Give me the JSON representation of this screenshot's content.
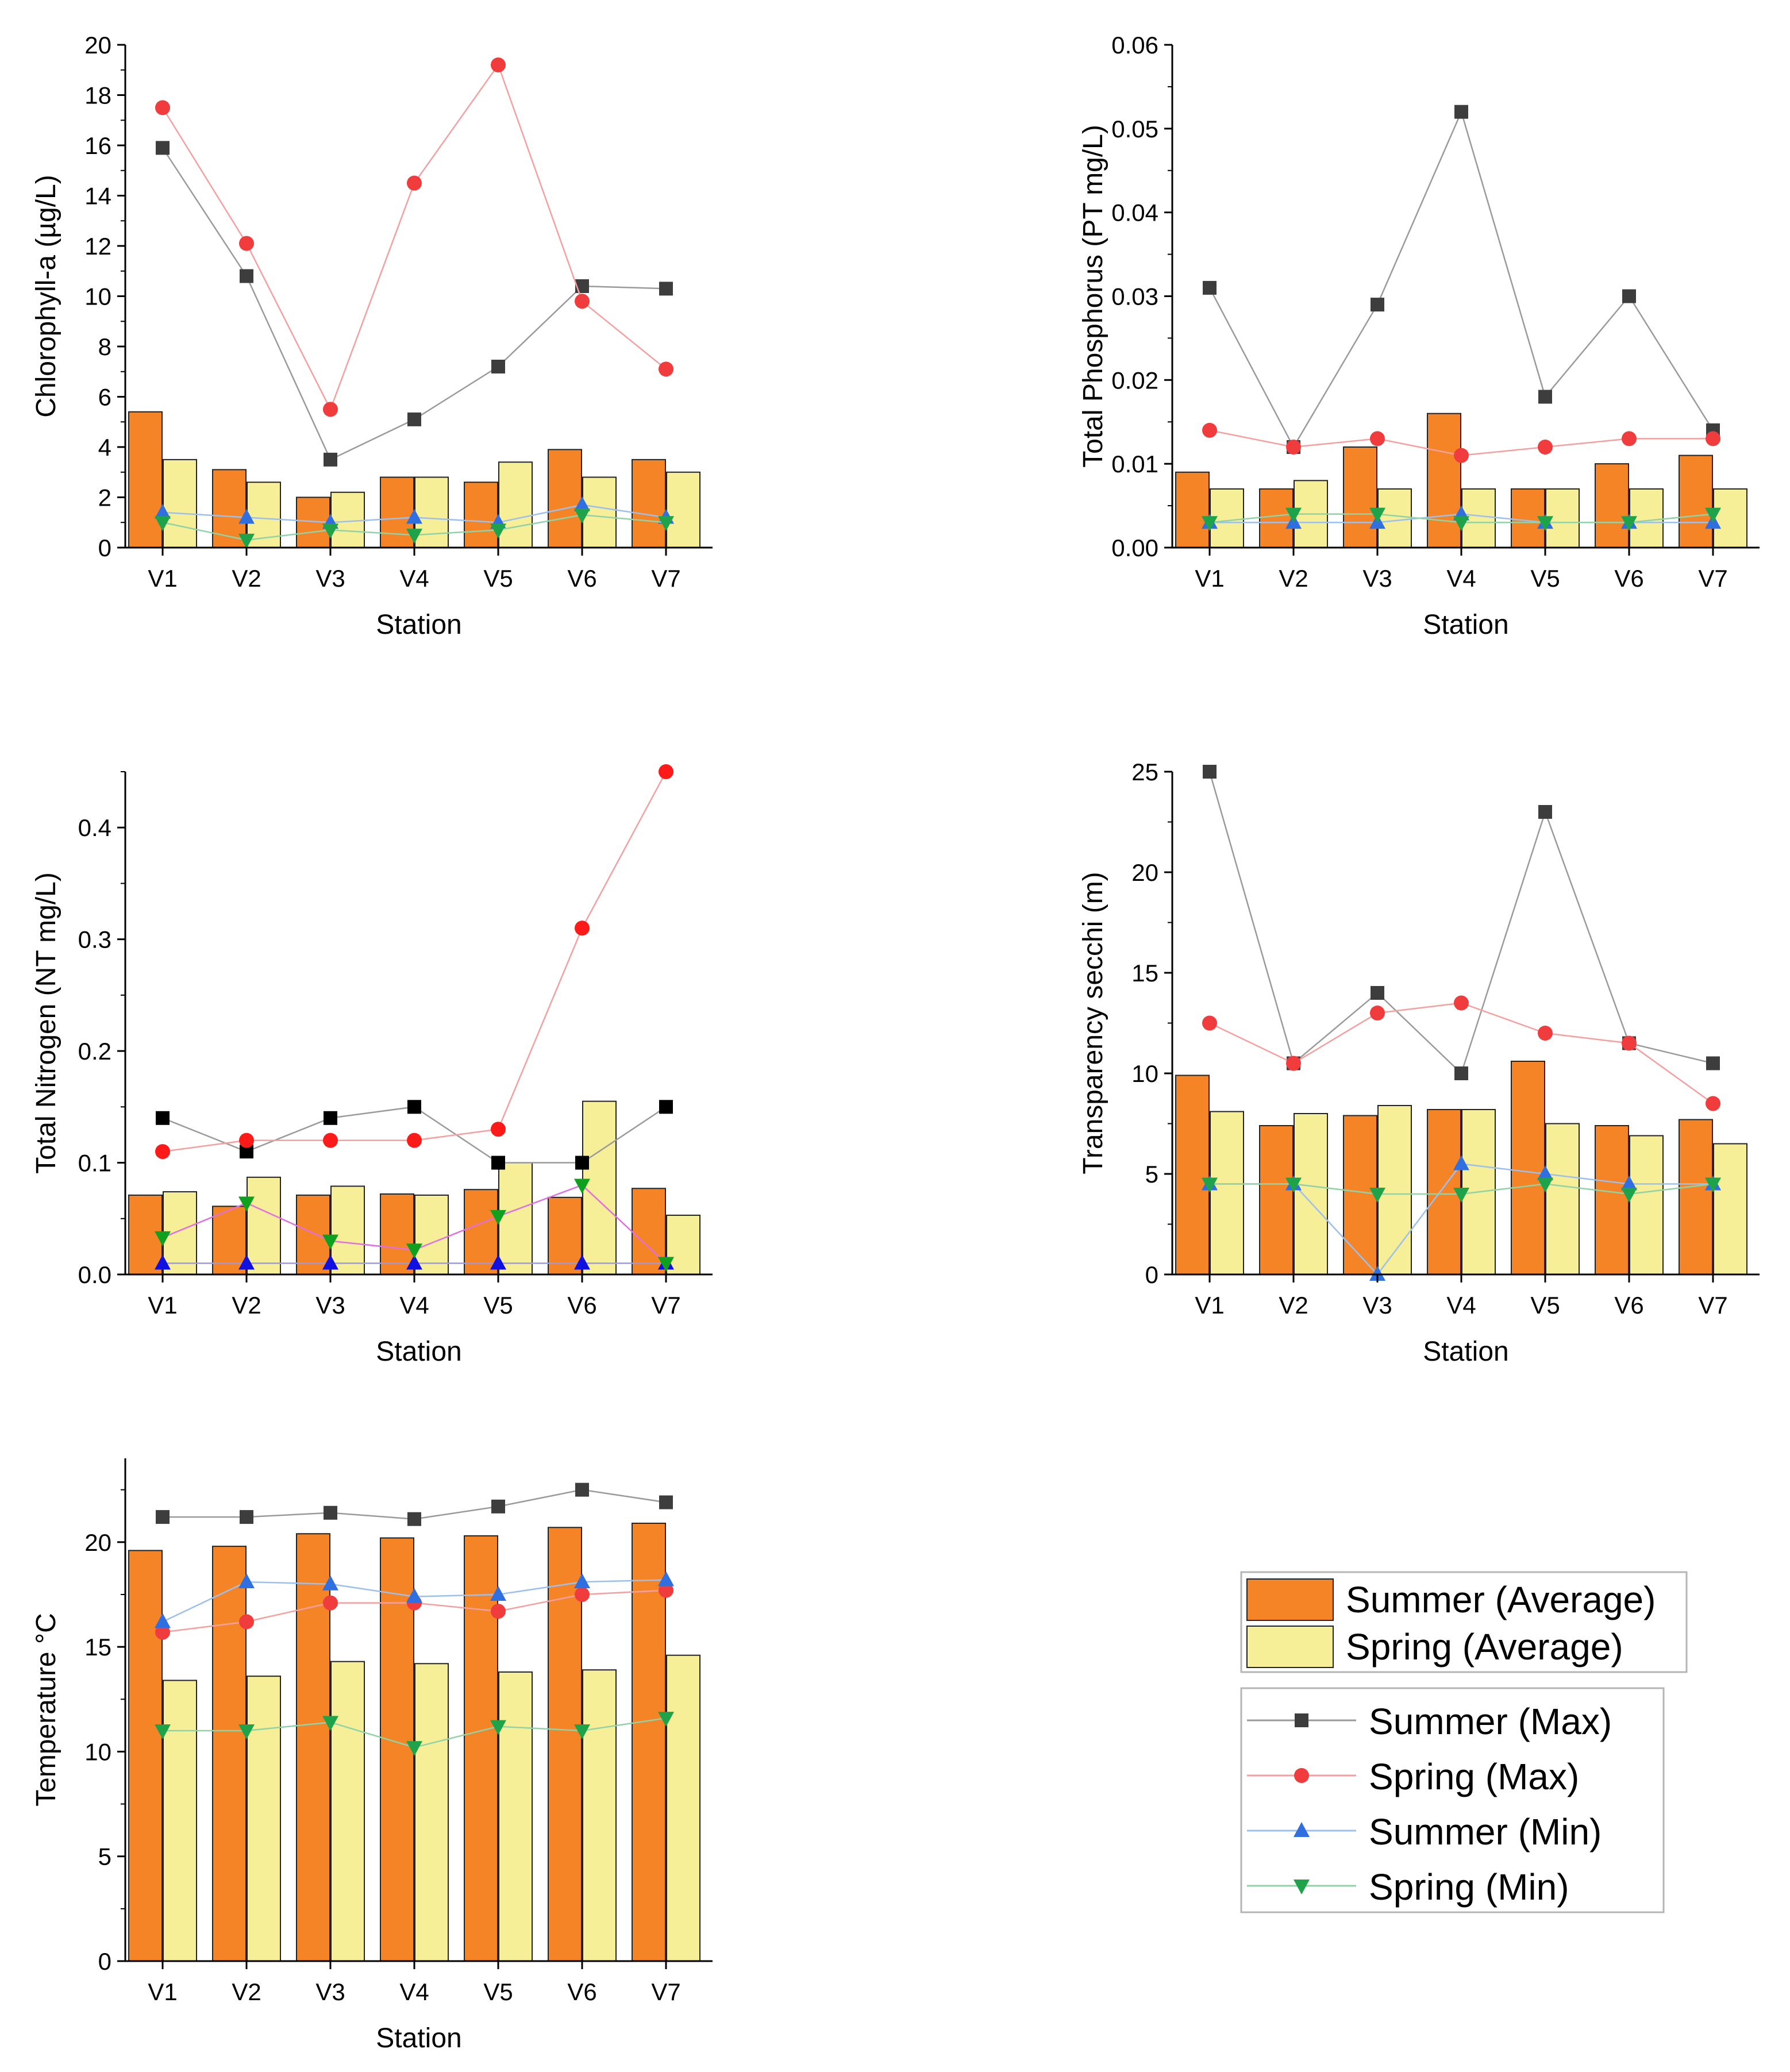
{
  "figure_title": "",
  "colors": {
    "summer_avg": "#f58426",
    "spring_avg": "#f7ee98",
    "summer_max": "#3d3d3d",
    "spring_max": "#f03c3c",
    "summer_min": "#2f6fe0",
    "spring_min": "#1fa34a",
    "summer_max_tn": "#000000",
    "spring_max_tn": "#ff1a1a",
    "summer_min_tn": "#1010e0",
    "spring_min_tn": "#10a020"
  },
  "legend": {
    "bars": [
      "Summer (Average)",
      "Spring (Average)"
    ],
    "lines": [
      "Summer (Max)",
      "Spring (Max)",
      "Summer (Min)",
      "Spring (Min)"
    ]
  },
  "chart_data": [
    {
      "type": "bar",
      "title": "",
      "xlabel": "Station",
      "ylabel": "Chlorophyll-a (µg/L)",
      "categories": [
        "V1",
        "V2",
        "V3",
        "V4",
        "V5",
        "V6",
        "V7"
      ],
      "ylim": [
        0,
        20
      ],
      "yticks": [
        "0",
        "2",
        "4",
        "6",
        "8",
        "10",
        "12",
        "14",
        "16",
        "18",
        "20"
      ],
      "series": [
        {
          "name": "Summer (Average)",
          "kind": "bar",
          "values": [
            5.4,
            3.1,
            2.0,
            2.8,
            2.6,
            3.9,
            3.5
          ]
        },
        {
          "name": "Spring (Average)",
          "kind": "bar",
          "values": [
            3.5,
            2.6,
            2.2,
            2.8,
            3.4,
            2.8,
            3.0
          ]
        },
        {
          "name": "Summer (Max)",
          "kind": "line",
          "marker": "square",
          "values": [
            15.9,
            10.8,
            3.5,
            5.1,
            7.2,
            10.4,
            10.3
          ]
        },
        {
          "name": "Spring (Max)",
          "kind": "line",
          "marker": "circle",
          "values": [
            17.5,
            12.1,
            5.5,
            14.5,
            19.2,
            9.8,
            7.1
          ]
        },
        {
          "name": "Summer (Min)",
          "kind": "line",
          "marker": "triangle-up",
          "values": [
            1.4,
            1.2,
            1.0,
            1.2,
            1.0,
            1.7,
            1.2
          ]
        },
        {
          "name": "Spring (Min)",
          "kind": "line",
          "marker": "triangle-down",
          "values": [
            1.0,
            0.3,
            0.7,
            0.5,
            0.7,
            1.3,
            1.0
          ]
        }
      ]
    },
    {
      "type": "bar",
      "title": "",
      "xlabel": "Station",
      "ylabel": "Total Phosphorus (PT mg/L)",
      "categories": [
        "V1",
        "V2",
        "V3",
        "V4",
        "V5",
        "V6",
        "V7"
      ],
      "ylim": [
        0,
        0.06
      ],
      "yticks": [
        "0.00",
        "0.01",
        "0.02",
        "0.03",
        "0.04",
        "0.05",
        "0.06"
      ],
      "series": [
        {
          "name": "Summer (Average)",
          "kind": "bar",
          "values": [
            0.009,
            0.007,
            0.012,
            0.016,
            0.007,
            0.01,
            0.011
          ]
        },
        {
          "name": "Spring (Average)",
          "kind": "bar",
          "values": [
            0.007,
            0.008,
            0.007,
            0.007,
            0.007,
            0.007,
            0.007
          ]
        },
        {
          "name": "Summer (Max)",
          "kind": "line",
          "marker": "square",
          "values": [
            0.031,
            0.012,
            0.029,
            0.052,
            0.018,
            0.03,
            0.014
          ]
        },
        {
          "name": "Spring (Max)",
          "kind": "line",
          "marker": "circle",
          "values": [
            0.014,
            0.012,
            0.013,
            0.011,
            0.012,
            0.013,
            0.013
          ]
        },
        {
          "name": "Summer (Min)",
          "kind": "line",
          "marker": "triangle-up",
          "values": [
            0.003,
            0.003,
            0.003,
            0.004,
            0.003,
            0.003,
            0.003
          ]
        },
        {
          "name": "Spring (Min)",
          "kind": "line",
          "marker": "triangle-down",
          "values": [
            0.003,
            0.004,
            0.004,
            0.003,
            0.003,
            0.003,
            0.004
          ]
        }
      ]
    },
    {
      "type": "bar",
      "title": "",
      "xlabel": "Station",
      "ylabel": "Total Nitrogen (NT mg/L)",
      "categories": [
        "V1",
        "V2",
        "V3",
        "V4",
        "V5",
        "V6",
        "V7"
      ],
      "ylim": [
        0,
        0.45
      ],
      "yticks": [
        "0.0",
        "0.1",
        "0.2",
        "0.3",
        "0.4"
      ],
      "series": [
        {
          "name": "Summer (Average)",
          "kind": "bar",
          "values": [
            0.071,
            0.061,
            0.071,
            0.072,
            0.076,
            0.069,
            0.077
          ]
        },
        {
          "name": "Spring (Average)",
          "kind": "bar",
          "values": [
            0.074,
            0.087,
            0.079,
            0.071,
            0.1,
            0.155,
            0.053
          ]
        },
        {
          "name": "Summer (Max)",
          "kind": "line",
          "marker": "square",
          "values": [
            0.14,
            0.11,
            0.14,
            0.15,
            0.1,
            0.1,
            0.15
          ]
        },
        {
          "name": "Spring (Max)",
          "kind": "line",
          "marker": "circle",
          "values": [
            0.11,
            0.12,
            0.12,
            0.12,
            0.13,
            0.31,
            0.45
          ]
        },
        {
          "name": "Summer (Min)",
          "kind": "line",
          "marker": "triangle-up",
          "values": [
            0.01,
            0.01,
            0.01,
            0.01,
            0.01,
            0.01,
            0.01
          ]
        },
        {
          "name": "Spring (Min)",
          "kind": "line",
          "marker": "triangle-down",
          "values": [
            0.033,
            0.064,
            0.03,
            0.022,
            0.052,
            0.08,
            0.01
          ]
        }
      ]
    },
    {
      "type": "bar",
      "title": "",
      "xlabel": "Station",
      "ylabel": "Transparency secchi (m)",
      "categories": [
        "V1",
        "V2",
        "V3",
        "V4",
        "V5",
        "V6",
        "V7"
      ],
      "ylim": [
        0,
        25
      ],
      "yticks": [
        "0",
        "5",
        "10",
        "15",
        "20",
        "25"
      ],
      "series": [
        {
          "name": "Summer (Average)",
          "kind": "bar",
          "values": [
            9.9,
            7.4,
            7.9,
            8.2,
            10.6,
            7.4,
            7.7
          ]
        },
        {
          "name": "Spring (Average)",
          "kind": "bar",
          "values": [
            8.1,
            8.0,
            8.4,
            8.2,
            7.5,
            6.9,
            6.5
          ]
        },
        {
          "name": "Summer (Max)",
          "kind": "line",
          "marker": "square",
          "values": [
            25,
            10.5,
            14,
            10,
            23,
            11.5,
            10.5
          ]
        },
        {
          "name": "Spring (Max)",
          "kind": "line",
          "marker": "circle",
          "values": [
            12.5,
            10.5,
            13,
            13.5,
            12,
            11.5,
            8.5
          ]
        },
        {
          "name": "Summer (Min)",
          "kind": "line",
          "marker": "triangle-up",
          "values": [
            4.5,
            4.5,
            0,
            5.5,
            5.0,
            4.5,
            4.5
          ]
        },
        {
          "name": "Spring (Min)",
          "kind": "line",
          "marker": "triangle-down",
          "values": [
            4.5,
            4.5,
            4.0,
            4.0,
            4.5,
            4.0,
            4.5
          ]
        }
      ]
    },
    {
      "type": "bar",
      "title": "",
      "xlabel": "Station",
      "ylabel": "Temperature °C",
      "categories": [
        "V1",
        "V2",
        "V3",
        "V4",
        "V5",
        "V6",
        "V7"
      ],
      "ylim": [
        0,
        24
      ],
      "yticks": [
        "0",
        "5",
        "10",
        "15",
        "20"
      ],
      "series": [
        {
          "name": "Summer (Average)",
          "kind": "bar",
          "values": [
            19.6,
            19.8,
            20.4,
            20.2,
            20.3,
            20.7,
            20.9
          ]
        },
        {
          "name": "Spring (Average)",
          "kind": "bar",
          "values": [
            13.4,
            13.6,
            14.3,
            14.2,
            13.8,
            13.9,
            14.6
          ]
        },
        {
          "name": "Summer (Max)",
          "kind": "line",
          "marker": "square",
          "values": [
            21.2,
            21.2,
            21.4,
            21.1,
            21.7,
            22.5,
            21.9
          ]
        },
        {
          "name": "Spring (Max)",
          "kind": "line",
          "marker": "circle",
          "values": [
            15.7,
            16.2,
            17.1,
            17.1,
            16.7,
            17.5,
            17.7
          ]
        },
        {
          "name": "Summer (Min)",
          "kind": "line",
          "marker": "triangle-up",
          "values": [
            16.2,
            18.1,
            18.0,
            17.4,
            17.5,
            18.1,
            18.2
          ]
        },
        {
          "name": "Spring (Min)",
          "kind": "line",
          "marker": "triangle-down",
          "values": [
            11.0,
            11.0,
            11.4,
            10.2,
            11.2,
            11.0,
            11.6
          ]
        }
      ]
    }
  ]
}
